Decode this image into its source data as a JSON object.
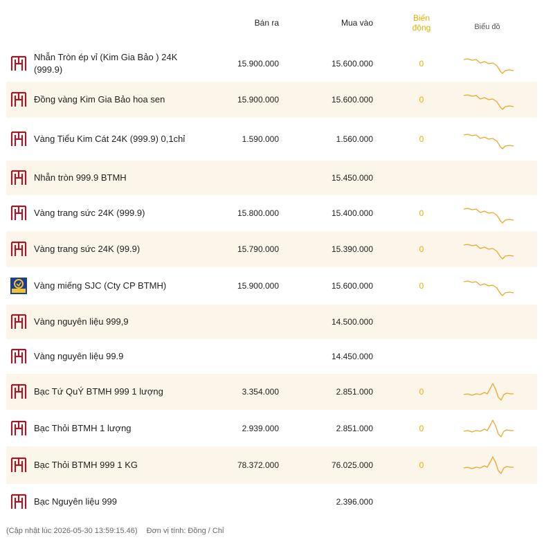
{
  "headers": {
    "sell": "Bán ra",
    "buy": "Mua vào",
    "change": "Biến động",
    "chart": "Biểu đồ"
  },
  "colors": {
    "accent": "#e8a92a",
    "logo_red": "#9b1b2a",
    "sjc_blue": "#1d3f8f",
    "row_alt": "#fbf5ea"
  },
  "rows": [
    {
      "name": "Nhẫn Tròn ép vỉ (Kim Gia Bảo ) 24K (999.9)",
      "sell": "15.900.000",
      "buy": "15.600.000",
      "change": "0",
      "logo": "btmh-logo-icon",
      "trend": "gold"
    },
    {
      "name": "Đồng vàng Kim Gia Bảo hoa sen",
      "sell": "15.900.000",
      "buy": "15.600.000",
      "change": "0",
      "logo": "btmh-logo-icon",
      "trend": "gold"
    },
    {
      "name": "Vàng Tiểu Kim Cát 24K (999.9) 0,1chỉ",
      "sell": "1.590.000",
      "buy": "1.560.000",
      "change": "0",
      "logo": "btmh-logo-icon",
      "trend": "gold"
    },
    {
      "name": "Nhẫn tròn 999.9 BTMH",
      "sell": "",
      "buy": "15.450.000",
      "change": "",
      "logo": "btmh-logo-icon",
      "trend": ""
    },
    {
      "name": "Vàng trang sức 24K (999.9)",
      "sell": "15.800.000",
      "buy": "15.400.000",
      "change": "0",
      "logo": "btmh-logo-icon",
      "trend": "gold"
    },
    {
      "name": "Vàng trang sức 24K (99.9)",
      "sell": "15.790.000",
      "buy": "15.390.000",
      "change": "0",
      "logo": "btmh-logo-icon",
      "trend": "gold"
    },
    {
      "name": "Vàng miếng SJC (Cty CP BTMH)",
      "sell": "15.900.000",
      "buy": "15.600.000",
      "change": "0",
      "logo": "sjc-logo-icon",
      "trend": "gold"
    },
    {
      "name": "Vàng nguyên liệu 999,9",
      "sell": "",
      "buy": "14.500.000",
      "change": "",
      "logo": "btmh-logo-icon",
      "trend": ""
    },
    {
      "name": "Vàng nguyên liệu 99.9",
      "sell": "",
      "buy": "14.450.000",
      "change": "",
      "logo": "btmh-logo-icon",
      "trend": ""
    },
    {
      "name": "Bạc Tứ QuÝ BTMH 999 1 lượng",
      "sell": "3.354.000",
      "buy": "2.851.000",
      "change": "0",
      "logo": "btmh-logo-icon",
      "trend": "silver"
    },
    {
      "name": "Bạc Thỏi BTMH 1 lượng",
      "sell": "2.939.000",
      "buy": "2.851.000",
      "change": "0",
      "logo": "btmh-logo-icon",
      "trend": "silver"
    },
    {
      "name": "Bạc Thỏi BTMH 999 1 KG",
      "sell": "78.372.000",
      "buy": "76.025.000",
      "change": "0",
      "logo": "btmh-logo-icon",
      "trend": "silver"
    },
    {
      "name": "Bạc Nguyên liệu 999",
      "sell": "",
      "buy": "2.396.000",
      "change": "",
      "logo": "btmh-logo-icon",
      "trend": ""
    }
  ],
  "footer": {
    "updated": "(Cập nhật lúc 2026-05-30 13:59:15.46)",
    "unit": "Đơn vị tính: Đồng / Chỉ"
  }
}
